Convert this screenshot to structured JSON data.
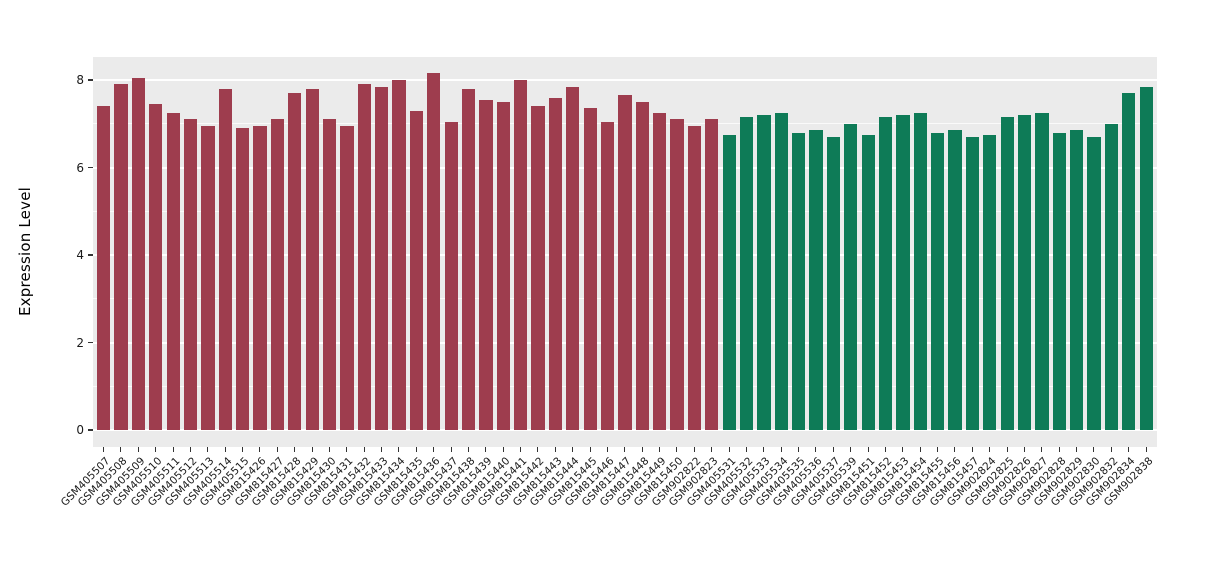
{
  "chart_data": {
    "type": "bar",
    "title": "",
    "xlabel": "",
    "ylabel": "Expression Level",
    "ylim": [
      0,
      8.5
    ],
    "yticks": [
      0,
      2,
      4,
      6,
      8
    ],
    "ytick_labels": [
      "0",
      "2",
      "4",
      "6",
      "8"
    ],
    "minor_gridlines": [
      1,
      3,
      5,
      7
    ],
    "grid": "on",
    "legend": "none",
    "panel_background": "#EBEBEB",
    "gridline_color": "#FFFFFF",
    "groups": [
      {
        "name": "group-red",
        "color": "#9E3D4E"
      },
      {
        "name": "group-green",
        "color": "#0E7B57"
      }
    ],
    "categories": [
      "GSM405507",
      "GSM405508",
      "GSM405509",
      "GSM405510",
      "GSM405511",
      "GSM405512",
      "GSM405513",
      "GSM405514",
      "GSM405515",
      "GSM815426",
      "GSM815427",
      "GSM815428",
      "GSM815429",
      "GSM815430",
      "GSM815431",
      "GSM815432",
      "GSM815433",
      "GSM815434",
      "GSM815435",
      "GSM815436",
      "GSM815437",
      "GSM815438",
      "GSM815439",
      "GSM815440",
      "GSM815441",
      "GSM815442",
      "GSM815443",
      "GSM815444",
      "GSM815445",
      "GSM815446",
      "GSM815447",
      "GSM815448",
      "GSM815449",
      "GSM815450",
      "GSM902822",
      "GSM902823",
      "GSM405531",
      "GSM405532",
      "GSM405533",
      "GSM405534",
      "GSM405535",
      "GSM405536",
      "GSM405537",
      "GSM405539",
      "GSM815451",
      "GSM815452",
      "GSM815453",
      "GSM815454",
      "GSM815455",
      "GSM815456",
      "GSM815457",
      "GSM902824",
      "GSM902825",
      "GSM902826",
      "GSM902827",
      "GSM902828",
      "GSM902829",
      "GSM902830",
      "GSM902832",
      "GSM902834",
      "GSM902838"
    ],
    "group_index": [
      0,
      0,
      0,
      0,
      0,
      0,
      0,
      0,
      0,
      0,
      0,
      0,
      0,
      0,
      0,
      0,
      0,
      0,
      0,
      0,
      0,
      0,
      0,
      0,
      0,
      0,
      0,
      0,
      0,
      0,
      0,
      0,
      0,
      0,
      0,
      0,
      1,
      1,
      1,
      1,
      1,
      1,
      1,
      1,
      1,
      1,
      1,
      1,
      1,
      1,
      1,
      1,
      1,
      1,
      1,
      1,
      1,
      1,
      1,
      1,
      1
    ],
    "series": [
      {
        "name": "Expression Level",
        "values": [
          7.4,
          7.9,
          8.05,
          7.45,
          7.25,
          7.1,
          6.95,
          7.8,
          6.9,
          6.95,
          7.1,
          7.7,
          7.8,
          7.1,
          6.95,
          7.9,
          7.85,
          8.0,
          7.3,
          8.15,
          7.05,
          7.8,
          7.55,
          7.5,
          8.0,
          7.4,
          7.6,
          7.85,
          7.35,
          7.05,
          7.65,
          7.5,
          7.25,
          7.1,
          6.95,
          7.1,
          6.75,
          7.15,
          7.2,
          7.25,
          6.8,
          6.85,
          6.7,
          7.0,
          6.75,
          7.15,
          7.2,
          7.25,
          6.8,
          6.85,
          6.7,
          6.75,
          7.15,
          7.2,
          7.25,
          6.8,
          6.85,
          6.7,
          7.0,
          7.7,
          7.85
        ]
      }
    ]
  }
}
